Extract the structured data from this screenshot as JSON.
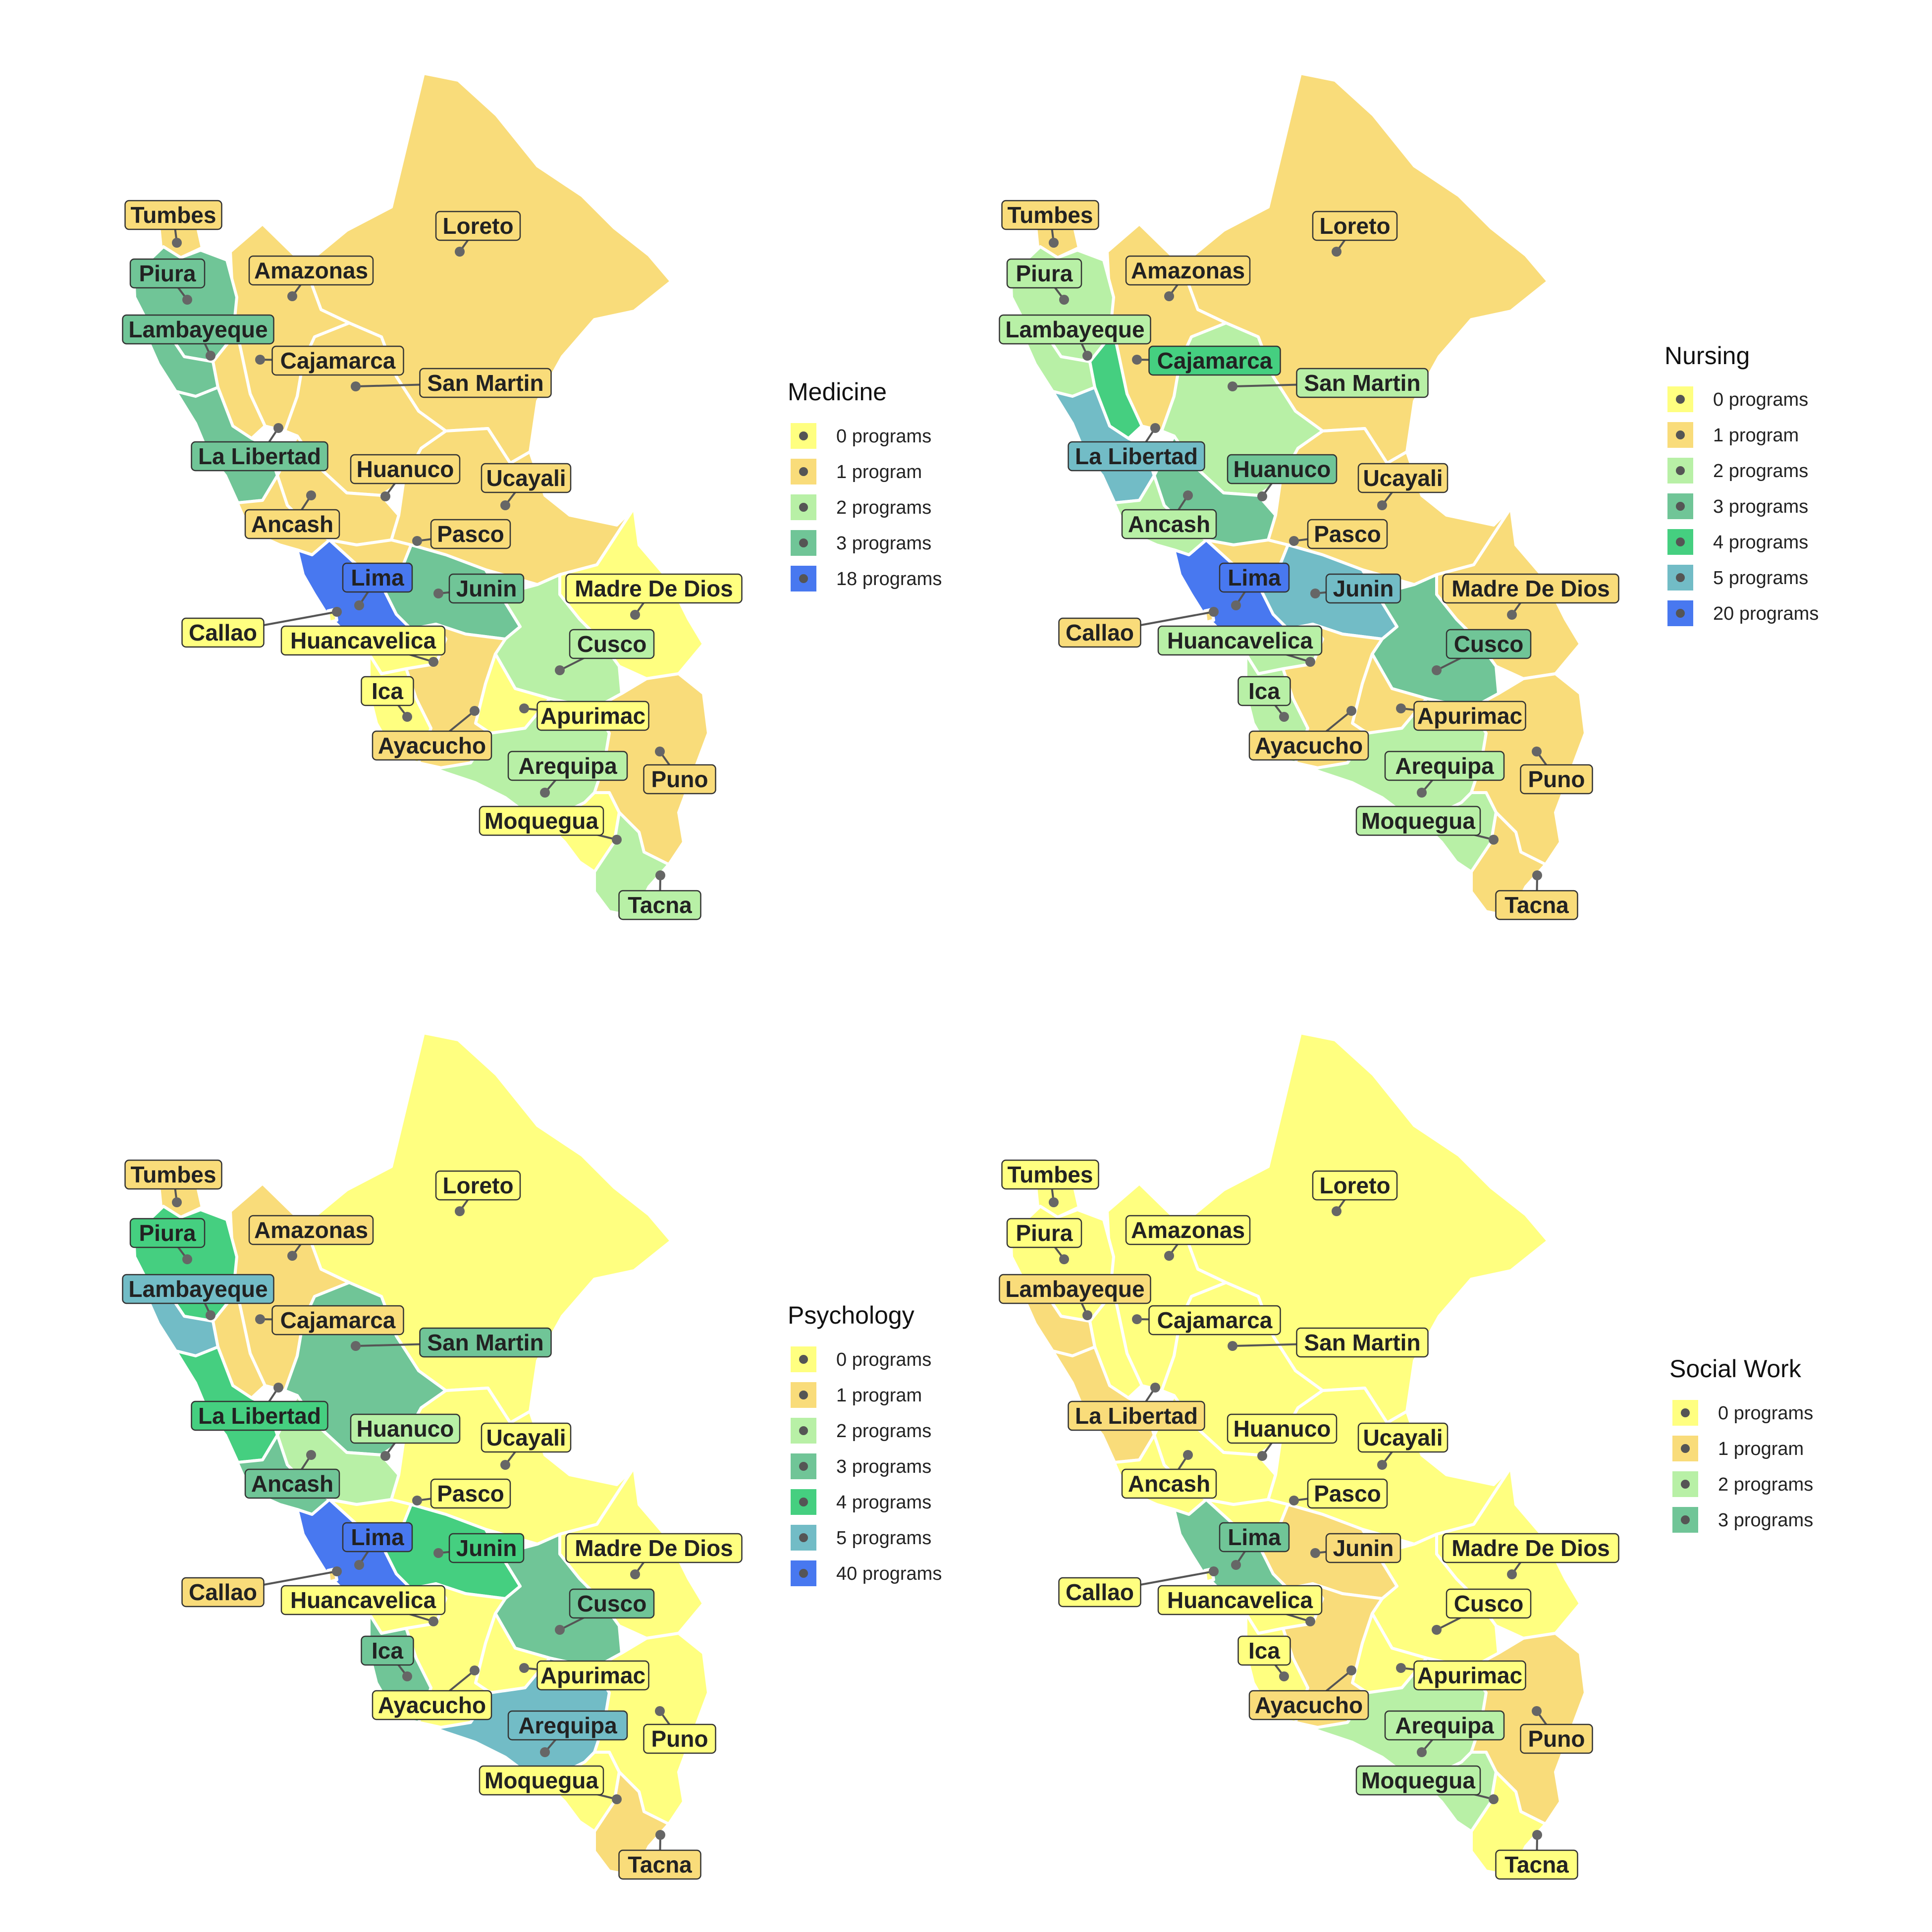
{
  "colors": {
    "c0": "#ffff80",
    "c1": "#f9dc7a",
    "c2": "#b8f0a6",
    "c3": "#70c597",
    "c4": "#45cf80",
    "c5": "#72bcc6",
    "cmax": "#4878f0"
  },
  "panels": [
    {
      "id": "medicine",
      "legend_title": "Medicine",
      "legend": [
        {
          "label": "0 programs",
          "color_key": "c0"
        },
        {
          "label": "1 program",
          "color_key": "c1"
        },
        {
          "label": "2 programs",
          "color_key": "c2"
        },
        {
          "label": "3 programs",
          "color_key": "c3"
        },
        {
          "label": "18 programs",
          "color_key": "cmax"
        }
      ],
      "values": {
        "Loreto": 1,
        "Amazonas": 1,
        "Tumbes": 1,
        "Piura": 3,
        "Lambayeque": 3,
        "Cajamarca": 1,
        "San Martin": 1,
        "La Libertad": 3,
        "Huanuco": 1,
        "Ucayali": 1,
        "Ancash": 1,
        "Pasco": 1,
        "Lima": 18,
        "Junin": 3,
        "Callao": 0,
        "Huancavelica": 0,
        "Madre De Dios": 0,
        "Cusco": 2,
        "Ica": 0,
        "Apurimac": 0,
        "Ayacucho": 1,
        "Arequipa": 2,
        "Puno": 1,
        "Moquegua": 0,
        "Tacna": 2
      }
    },
    {
      "id": "nursing",
      "legend_title": "Nursing",
      "legend": [
        {
          "label": "0 programs",
          "color_key": "c0"
        },
        {
          "label": "1 program",
          "color_key": "c1"
        },
        {
          "label": "2 programs",
          "color_key": "c2"
        },
        {
          "label": "3 programs",
          "color_key": "c3"
        },
        {
          "label": "4 programs",
          "color_key": "c4"
        },
        {
          "label": "5 programs",
          "color_key": "c5"
        },
        {
          "label": "20 programs",
          "color_key": "cmax"
        }
      ],
      "values": {
        "Loreto": 1,
        "Amazonas": 1,
        "Tumbes": 1,
        "Piura": 2,
        "Lambayeque": 2,
        "Cajamarca": 4,
        "San Martin": 2,
        "La Libertad": 5,
        "Huanuco": 3,
        "Ucayali": 1,
        "Ancash": 2,
        "Pasco": 1,
        "Lima": 20,
        "Junin": 5,
        "Callao": 1,
        "Huancavelica": 2,
        "Madre De Dios": 1,
        "Cusco": 3,
        "Ica": 2,
        "Apurimac": 1,
        "Ayacucho": 1,
        "Arequipa": 2,
        "Puno": 1,
        "Moquegua": 2,
        "Tacna": 1
      }
    },
    {
      "id": "psychology",
      "legend_title": "Psychology",
      "legend": [
        {
          "label": "0 programs",
          "color_key": "c0"
        },
        {
          "label": "1 program",
          "color_key": "c1"
        },
        {
          "label": "2 programs",
          "color_key": "c2"
        },
        {
          "label": "3 programs",
          "color_key": "c3"
        },
        {
          "label": "4 programs",
          "color_key": "c4"
        },
        {
          "label": "5 programs",
          "color_key": "c5"
        },
        {
          "label": "40 programs",
          "color_key": "cmax"
        }
      ],
      "values": {
        "Loreto": 0,
        "Amazonas": 1,
        "Tumbes": 1,
        "Piura": 4,
        "Lambayeque": 5,
        "Cajamarca": 1,
        "San Martin": 3,
        "La Libertad": 4,
        "Huanuco": 2,
        "Ucayali": 0,
        "Ancash": 3,
        "Pasco": 0,
        "Lima": 40,
        "Junin": 4,
        "Callao": 1,
        "Huancavelica": 0,
        "Madre De Dios": 0,
        "Cusco": 3,
        "Ica": 3,
        "Apurimac": 0,
        "Ayacucho": 0,
        "Arequipa": 5,
        "Puno": 0,
        "Moquegua": 0,
        "Tacna": 1
      }
    },
    {
      "id": "social-work",
      "legend_title": "Social Work",
      "legend": [
        {
          "label": "0 programs",
          "color_key": "c0"
        },
        {
          "label": "1 program",
          "color_key": "c1"
        },
        {
          "label": "2 programs",
          "color_key": "c2"
        },
        {
          "label": "3 programs",
          "color_key": "c3"
        }
      ],
      "values": {
        "Loreto": 0,
        "Amazonas": 0,
        "Tumbes": 0,
        "Piura": 0,
        "Lambayeque": 1,
        "Cajamarca": 0,
        "San Martin": 0,
        "La Libertad": 1,
        "Huanuco": 0,
        "Ucayali": 0,
        "Ancash": 0,
        "Pasco": 0,
        "Lima": 3,
        "Junin": 1,
        "Callao": 0,
        "Huancavelica": 0,
        "Madre De Dios": 0,
        "Cusco": 0,
        "Ica": 0,
        "Apurimac": 0,
        "Ayacucho": 1,
        "Arequipa": 2,
        "Puno": 1,
        "Moquegua": 2,
        "Tacna": 0
      }
    }
  ]
}
